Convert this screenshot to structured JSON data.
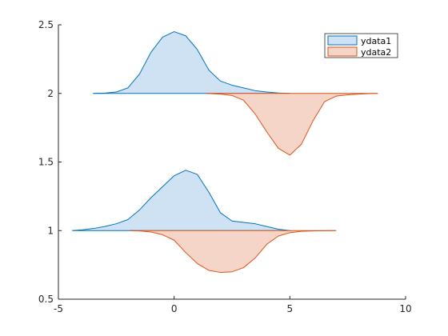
{
  "chart_data": {
    "type": "area",
    "xlim": [
      -5,
      10
    ],
    "ylim": [
      0.5,
      2.5
    ],
    "xticks": [
      -5,
      0,
      5,
      10
    ],
    "yticks": [
      0.5,
      1,
      1.5,
      2,
      2.5
    ],
    "xtick_labels": [
      "-5",
      "0",
      "5",
      "10"
    ],
    "ytick_labels": [
      "0.5",
      "1",
      "1.5",
      "2",
      "2.5"
    ],
    "grid": false,
    "legend_position": "top-right",
    "series": [
      {
        "name": "ydata1",
        "color": "#0072BD",
        "fill": "#cfe2f3",
        "groups": [
          {
            "baseline": 2,
            "direction": "up",
            "x": [
              -3.5,
              -3,
              -2.5,
              -2,
              -1.5,
              -1,
              -0.5,
              0,
              0.5,
              1,
              1.5,
              2,
              2.5,
              3,
              3.5,
              4,
              4.5,
              5
            ],
            "y": [
              2,
              2.002,
              2.01,
              2.04,
              2.14,
              2.3,
              2.41,
              2.45,
              2.42,
              2.32,
              2.17,
              2.09,
              2.06,
              2.04,
              2.02,
              2.01,
              2.003,
              2
            ]
          },
          {
            "baseline": 1,
            "direction": "up",
            "x": [
              -4.4,
              -4,
              -3.5,
              -3,
              -2.5,
              -2,
              -1.5,
              -1,
              -0.5,
              0,
              0.5,
              1,
              1.5,
              2,
              2.5,
              3,
              3.5,
              4,
              4.5,
              5
            ],
            "y": [
              1,
              1.005,
              1.015,
              1.03,
              1.05,
              1.08,
              1.15,
              1.24,
              1.32,
              1.4,
              1.44,
              1.41,
              1.28,
              1.13,
              1.07,
              1.06,
              1.05,
              1.03,
              1.01,
              1
            ]
          }
        ]
      },
      {
        "name": "ydata2",
        "color": "#D95319",
        "fill": "#f5d5c7",
        "groups": [
          {
            "baseline": 2,
            "direction": "down",
            "x": [
              1.4,
              2,
              2.5,
              3,
              3.5,
              4,
              4.5,
              5,
              5.5,
              6,
              6.5,
              7,
              7.5,
              8,
              8.5,
              8.8
            ],
            "y": [
              2,
              1.995,
              1.985,
              1.95,
              1.85,
              1.72,
              1.6,
              1.55,
              1.63,
              1.8,
              1.94,
              1.98,
              1.99,
              1.995,
              1.999,
              2
            ]
          },
          {
            "baseline": 1,
            "direction": "down",
            "x": [
              -1.9,
              -1.5,
              -1,
              -0.5,
              0,
              0.5,
              1,
              1.5,
              2,
              2.5,
              3,
              3.5,
              4,
              4.5,
              5,
              5.5,
              6,
              6.5,
              7
            ],
            "y": [
              1,
              0.998,
              0.99,
              0.97,
              0.93,
              0.84,
              0.76,
              0.71,
              0.695,
              0.7,
              0.73,
              0.8,
              0.9,
              0.96,
              0.985,
              0.995,
              0.998,
              0.999,
              1
            ]
          }
        ]
      }
    ]
  }
}
